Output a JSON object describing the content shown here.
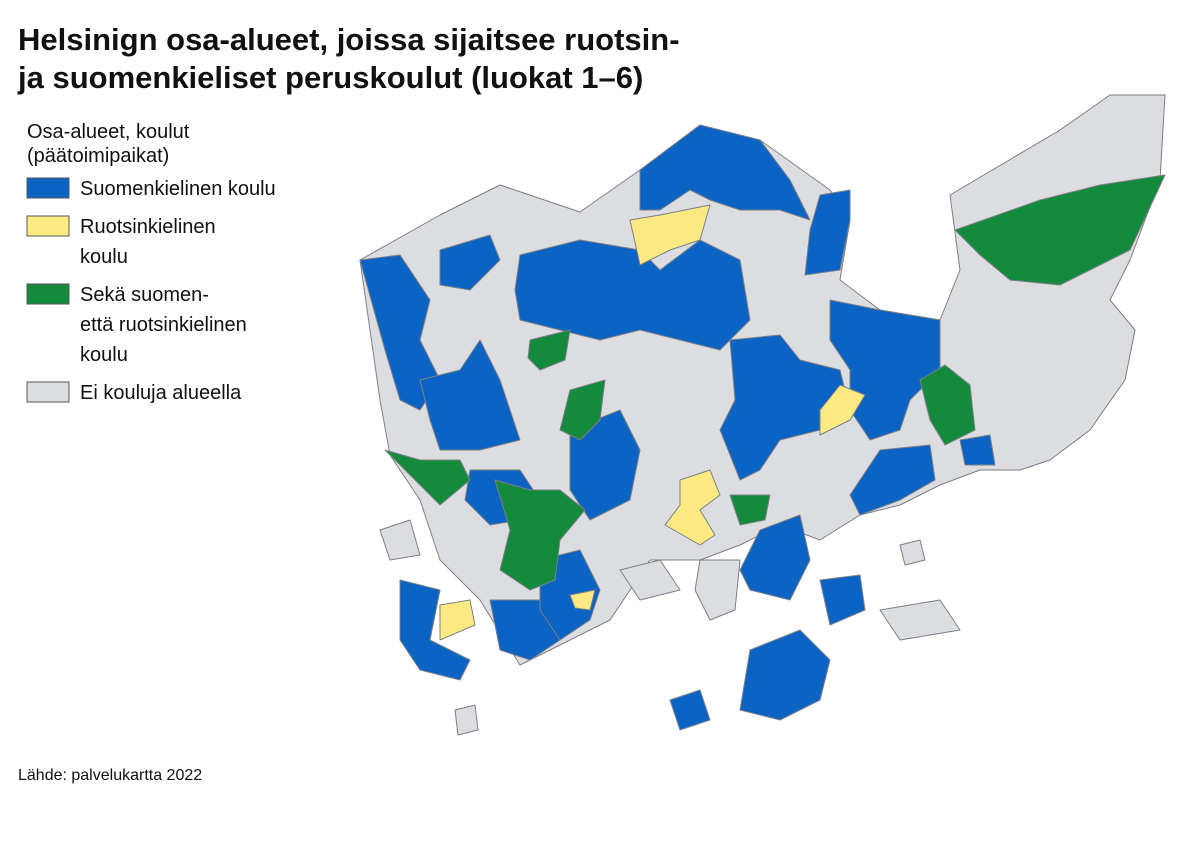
{
  "header": {
    "title": [
      "Helsinign osa-alueet, joissa sijaitsee ruotsin-",
      "ja suomenkieliset peruskoulut (luokat 1–6)"
    ]
  },
  "legend": {
    "title": [
      "Osa-alueet, koulut",
      "(päätoimipaikat)"
    ],
    "items": [
      {
        "label": [
          "Suomenkielinen koulu"
        ],
        "color": "#0b63c4"
      },
      {
        "label": [
          "Ruotsinkielinen",
          "koulu"
        ],
        "color": "#fde981"
      },
      {
        "label": [
          "Sekä suomen-",
          "että ruotsinkielinen",
          "koulu"
        ],
        "color": "#138a3c"
      },
      {
        "label": [
          "Ei kouluja alueella"
        ],
        "color": "#dcdde0"
      }
    ]
  },
  "source": "Lähde: palvelukartta 2022"
}
